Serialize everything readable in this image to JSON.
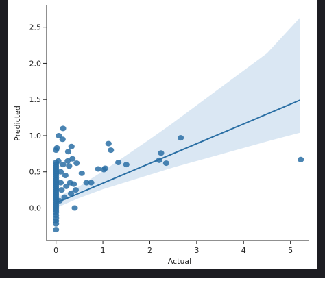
{
  "chart_data": {
    "type": "scatter",
    "subtype": "regression-plot",
    "xlabel": "Actual",
    "ylabel": "Predicted",
    "xlim": [
      -0.2,
      5.4
    ],
    "ylim": [
      -0.45,
      2.8
    ],
    "xticks": [
      0,
      1,
      2,
      3,
      4,
      5
    ],
    "yticks": [
      0.0,
      0.5,
      1.0,
      1.5,
      2.0,
      2.5
    ],
    "xtick_labels": [
      "0",
      "1",
      "2",
      "3",
      "4",
      "5"
    ],
    "ytick_labels": [
      "0.0",
      "0.5",
      "1.0",
      "1.5",
      "2.0",
      "2.5"
    ],
    "grid": false,
    "colors": {
      "points": "#2a6fa4",
      "fit_line": "#2a6fa4",
      "ci_band": "#bcd3ea",
      "background": "#ffffff",
      "frame": "#1d1d22"
    },
    "regression_line": {
      "x": [
        0.0,
        5.2
      ],
      "y": [
        0.07,
        1.49
      ]
    },
    "confidence_band": {
      "x": [
        0.0,
        0.5,
        1.0,
        1.5,
        2.0,
        2.5,
        3.0,
        3.5,
        4.0,
        4.5,
        5.2
      ],
      "upper": [
        0.14,
        0.3,
        0.51,
        0.73,
        0.95,
        1.18,
        1.42,
        1.66,
        1.9,
        2.14,
        2.63
      ],
      "lower": [
        0.0,
        0.14,
        0.26,
        0.36,
        0.46,
        0.56,
        0.65,
        0.74,
        0.83,
        0.92,
        1.04
      ]
    },
    "points": [
      {
        "x": 0.0,
        "y": -0.3
      },
      {
        "x": 0.0,
        "y": -0.22
      },
      {
        "x": 0.0,
        "y": -0.18
      },
      {
        "x": 0.0,
        "y": -0.14
      },
      {
        "x": 0.0,
        "y": -0.1
      },
      {
        "x": 0.0,
        "y": -0.06
      },
      {
        "x": 0.0,
        "y": -0.03
      },
      {
        "x": 0.0,
        "y": 0.0
      },
      {
        "x": 0.0,
        "y": 0.03
      },
      {
        "x": 0.0,
        "y": 0.06
      },
      {
        "x": 0.0,
        "y": 0.09
      },
      {
        "x": 0.0,
        "y": 0.12
      },
      {
        "x": 0.0,
        "y": 0.15
      },
      {
        "x": 0.0,
        "y": 0.18
      },
      {
        "x": 0.0,
        "y": 0.21
      },
      {
        "x": 0.0,
        "y": 0.24
      },
      {
        "x": 0.0,
        "y": 0.27
      },
      {
        "x": 0.0,
        "y": 0.3
      },
      {
        "x": 0.0,
        "y": 0.33
      },
      {
        "x": 0.0,
        "y": 0.36
      },
      {
        "x": 0.0,
        "y": 0.39
      },
      {
        "x": 0.0,
        "y": 0.42
      },
      {
        "x": 0.0,
        "y": 0.45
      },
      {
        "x": 0.0,
        "y": 0.48
      },
      {
        "x": 0.0,
        "y": 0.51
      },
      {
        "x": 0.0,
        "y": 0.54
      },
      {
        "x": 0.0,
        "y": 0.57
      },
      {
        "x": 0.0,
        "y": 0.6
      },
      {
        "x": 0.0,
        "y": 0.63
      },
      {
        "x": 0.0,
        "y": 0.8
      },
      {
        "x": 0.02,
        "y": 0.83
      },
      {
        "x": 0.05,
        "y": 0.65
      },
      {
        "x": 0.06,
        "y": 1.0
      },
      {
        "x": 0.08,
        "y": 0.1
      },
      {
        "x": 0.1,
        "y": 0.35
      },
      {
        "x": 0.1,
        "y": 0.5
      },
      {
        "x": 0.12,
        "y": 0.25
      },
      {
        "x": 0.14,
        "y": 0.95
      },
      {
        "x": 0.15,
        "y": 0.6
      },
      {
        "x": 0.15,
        "y": 1.1
      },
      {
        "x": 0.18,
        "y": 0.15
      },
      {
        "x": 0.2,
        "y": 0.45
      },
      {
        "x": 0.22,
        "y": 0.3
      },
      {
        "x": 0.25,
        "y": 0.65
      },
      {
        "x": 0.26,
        "y": 0.78
      },
      {
        "x": 0.28,
        "y": 0.58
      },
      {
        "x": 0.3,
        "y": 0.35
      },
      {
        "x": 0.32,
        "y": 0.2
      },
      {
        "x": 0.33,
        "y": 0.85
      },
      {
        "x": 0.35,
        "y": 0.68
      },
      {
        "x": 0.38,
        "y": 0.33
      },
      {
        "x": 0.4,
        "y": 0.0
      },
      {
        "x": 0.42,
        "y": 0.25
      },
      {
        "x": 0.44,
        "y": 0.62
      },
      {
        "x": 0.55,
        "y": 0.48
      },
      {
        "x": 0.65,
        "y": 0.35
      },
      {
        "x": 0.75,
        "y": 0.35
      },
      {
        "x": 0.9,
        "y": 0.54
      },
      {
        "x": 1.02,
        "y": 0.53
      },
      {
        "x": 1.05,
        "y": 0.55
      },
      {
        "x": 1.12,
        "y": 0.89
      },
      {
        "x": 1.17,
        "y": 0.8
      },
      {
        "x": 1.33,
        "y": 0.63
      },
      {
        "x": 1.5,
        "y": 0.6
      },
      {
        "x": 2.2,
        "y": 0.66
      },
      {
        "x": 2.24,
        "y": 0.76
      },
      {
        "x": 2.35,
        "y": 0.62
      },
      {
        "x": 2.66,
        "y": 0.97
      },
      {
        "x": 5.22,
        "y": 0.67
      }
    ]
  }
}
